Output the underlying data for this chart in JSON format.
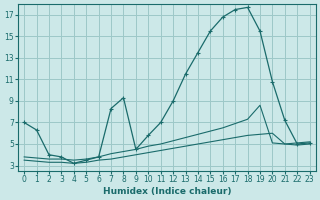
{
  "xlabel": "Humidex (Indice chaleur)",
  "bg_color": "#cce8e8",
  "grid_color": "#9dc8c8",
  "line_color": "#1a6b6b",
  "xlim": [
    -0.5,
    23.5
  ],
  "ylim": [
    2.5,
    18
  ],
  "xticks": [
    0,
    1,
    2,
    3,
    4,
    5,
    6,
    7,
    8,
    9,
    10,
    11,
    12,
    13,
    14,
    15,
    16,
    17,
    18,
    19,
    20,
    21,
    22,
    23
  ],
  "yticks": [
    3,
    5,
    7,
    9,
    11,
    13,
    15,
    17
  ],
  "lines": [
    {
      "x": [
        0,
        1,
        2,
        3,
        4,
        5,
        6,
        7,
        8,
        9,
        10,
        11,
        12,
        13,
        14,
        15,
        16,
        17,
        18,
        19,
        20,
        21,
        22,
        23
      ],
      "y": [
        7.0,
        6.3,
        4.0,
        3.8,
        3.2,
        3.5,
        3.8,
        8.3,
        9.3,
        4.5,
        5.8,
        7.0,
        9.0,
        11.5,
        13.5,
        15.5,
        16.8,
        17.5,
        17.7,
        15.5,
        10.8,
        7.2,
        5.0,
        5.1
      ],
      "marker": "+"
    },
    {
      "x": [
        0,
        1,
        2,
        3,
        4,
        5,
        6,
        7,
        8,
        9,
        10,
        11,
        12,
        13,
        14,
        15,
        16,
        17,
        18,
        19,
        20,
        21,
        22,
        23
      ],
      "y": [
        3.8,
        3.7,
        3.6,
        3.6,
        3.5,
        3.6,
        3.8,
        4.1,
        4.3,
        4.5,
        4.8,
        5.0,
        5.3,
        5.6,
        5.9,
        6.2,
        6.5,
        6.9,
        7.3,
        8.6,
        5.1,
        5.0,
        5.1,
        5.2
      ],
      "marker": null
    },
    {
      "x": [
        0,
        1,
        2,
        3,
        4,
        5,
        6,
        7,
        8,
        9,
        10,
        11,
        12,
        13,
        14,
        15,
        16,
        17,
        18,
        19,
        20,
        21,
        22,
        23
      ],
      "y": [
        3.5,
        3.4,
        3.3,
        3.3,
        3.2,
        3.3,
        3.5,
        3.6,
        3.8,
        4.0,
        4.2,
        4.4,
        4.6,
        4.8,
        5.0,
        5.2,
        5.4,
        5.6,
        5.8,
        5.9,
        6.0,
        5.0,
        4.9,
        5.0
      ],
      "marker": null
    }
  ]
}
